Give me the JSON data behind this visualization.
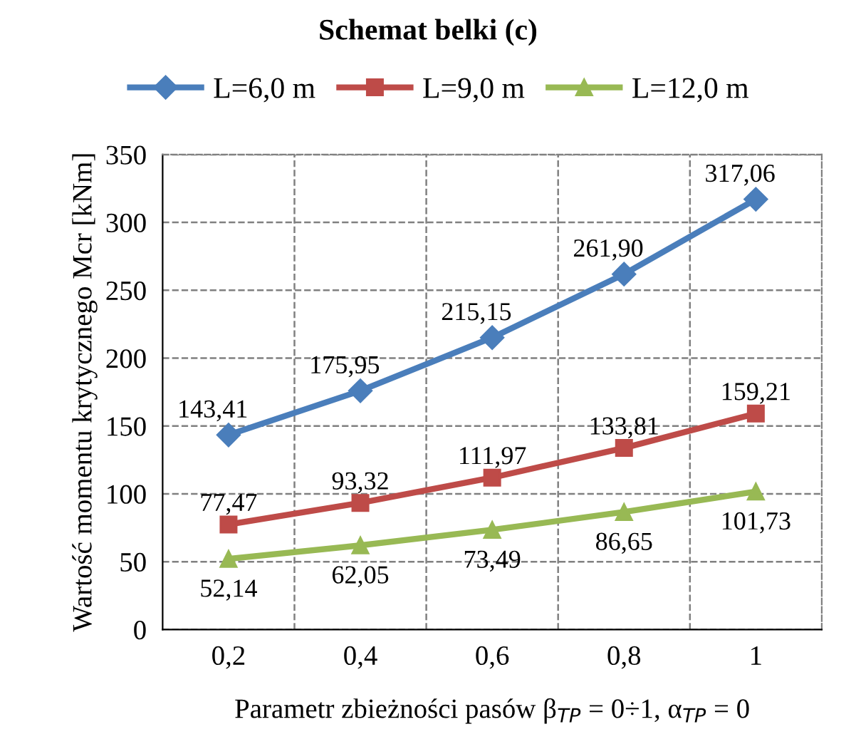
{
  "chart_data": {
    "type": "line",
    "title": "Schemat belki (c)",
    "xlabel": "Parametr zbieżności pasów β$_{TP}$ = 0÷1, α$_{TP}$ = 0",
    "ylabel": "Wartość momentu krytycznego Mcr [kNm]",
    "categories": [
      "0,2",
      "0,4",
      "0,6",
      "0,8",
      "1"
    ],
    "series": [
      {
        "name": "L=6,0 m",
        "color": "#4a7ebb",
        "marker": "diamond",
        "values": [
          143.41,
          175.95,
          215.15,
          261.9,
          317.06
        ],
        "value_labels": [
          "143,41",
          "175,95",
          "215,15",
          "261,90",
          "317,06"
        ]
      },
      {
        "name": "L=9,0 m",
        "color": "#be4b48",
        "marker": "square",
        "values": [
          77.47,
          93.32,
          111.97,
          133.81,
          159.21
        ],
        "value_labels": [
          "77,47",
          "93,32",
          "111,97",
          "133,81",
          "159,21"
        ]
      },
      {
        "name": "L=12,0 m",
        "color": "#98b954",
        "marker": "triangle",
        "values": [
          52.14,
          62.05,
          73.49,
          86.65,
          101.73
        ],
        "value_labels": [
          "52,14",
          "62,05",
          "73,49",
          "86,65",
          "101,73"
        ]
      }
    ],
    "ylim": [
      0,
      350
    ],
    "yticks": [
      0,
      50,
      100,
      150,
      200,
      250,
      300,
      350
    ],
    "grid": true,
    "legend": "top",
    "line_style": "solid"
  }
}
